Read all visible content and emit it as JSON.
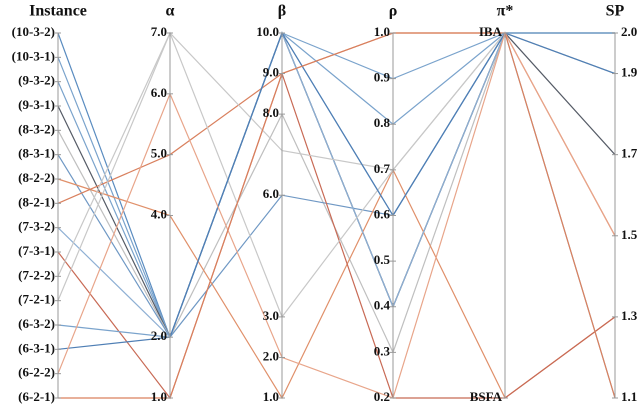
{
  "chart_data": {
    "type": "parallel",
    "dimensions": [
      {
        "label": "Instance",
        "categories": [
          "(6-2-1)",
          "(6-2-2)",
          "(6-3-1)",
          "(6-3-2)",
          "(7-2-1)",
          "(7-2-2)",
          "(7-3-1)",
          "(7-3-2)",
          "(8-2-1)",
          "(8-2-2)",
          "(8-3-1)",
          "(8-3-2)",
          "(9-3-1)",
          "(9-3-2)",
          "(10-3-1)",
          "(10-3-2)"
        ]
      },
      {
        "label": "α",
        "ylim": [
          1,
          7
        ],
        "yticks": [
          {
            "value": 1,
            "label": "1.0"
          },
          {
            "value": 2,
            "label": "2.0"
          },
          {
            "value": 4,
            "label": "4.0"
          },
          {
            "value": 5,
            "label": "5.0"
          },
          {
            "value": 6,
            "label": "6.0"
          },
          {
            "value": 7,
            "label": "7.0"
          }
        ]
      },
      {
        "label": "β",
        "ylim": [
          1,
          10
        ],
        "yticks": [
          {
            "value": 1,
            "label": "1.0"
          },
          {
            "value": 2,
            "label": "2.0"
          },
          {
            "value": 3,
            "label": "3.0"
          },
          {
            "value": 6,
            "label": "6.0"
          },
          {
            "value": 8,
            "label": "8.0"
          },
          {
            "value": 9,
            "label": "9.0"
          },
          {
            "value": 10,
            "label": "10.0"
          }
        ]
      },
      {
        "label": "ρ",
        "ylim": [
          0.2,
          1
        ],
        "yticks": [
          0.2,
          0.3,
          0.4,
          0.5,
          0.6,
          0.7,
          0.8,
          0.9,
          {
            "value": 1,
            "label": "1.0"
          }
        ]
      },
      {
        "label": "π*",
        "categories": [
          "BSFA",
          "IBA"
        ]
      },
      {
        "label": "SP",
        "ylim": [
          1.1,
          2
        ],
        "yticks": [
          1.1,
          1.3,
          1.5,
          1.7,
          1.9,
          {
            "value": 2,
            "label": "2.0"
          }
        ],
        "tick_side": "right"
      }
    ],
    "series": [
      {
        "color": "#5a8cc0",
        "values": [
          "(10-3-2)",
          2,
          10,
          0.4,
          "IBA",
          2
        ]
      },
      {
        "color": "#7aa3cc",
        "values": [
          "(10-3-1)",
          2,
          10,
          0.6,
          "IBA",
          1.9
        ]
      },
      {
        "color": "#7aa3cc",
        "values": [
          "(9-3-2)",
          2,
          10,
          0.8,
          "IBA",
          2
        ]
      },
      {
        "color": "#555b66",
        "values": [
          "(9-3-1)",
          2,
          10,
          0.4,
          "IBA",
          1.7
        ]
      },
      {
        "color": "#bfbfbf",
        "values": [
          "(8-3-2)",
          2,
          8,
          0.3,
          "IBA",
          1.9
        ]
      },
      {
        "color": "#6f98c4",
        "values": [
          "(8-3-1)",
          2,
          6,
          0.6,
          "IBA",
          2
        ]
      },
      {
        "color": "#e0906a",
        "values": [
          "(8-2-2)",
          4,
          1,
          0.7,
          "BSFA",
          1.3
        ]
      },
      {
        "color": "#d9805e",
        "values": [
          "(8-2-1)",
          5,
          9,
          1,
          "IBA",
          1.5
        ]
      },
      {
        "color": "#8fb0d4",
        "values": [
          "(7-3-2)",
          2,
          10,
          0.4,
          "IBA",
          1.1
        ]
      },
      {
        "color": "#c86a55",
        "values": [
          "(7-3-1)",
          1,
          9,
          0.2,
          "BSFA",
          1.3
        ]
      },
      {
        "color": "#c8c8c8",
        "values": [
          "(7-2-2)",
          7,
          3,
          0.7,
          "IBA",
          1.1
        ]
      },
      {
        "color": "#c8c8c8",
        "values": [
          "(7-2-1)",
          7,
          7.1,
          0.7,
          "IBA",
          2
        ]
      },
      {
        "color": "#7aa3cc",
        "values": [
          "(6-3-2)",
          2,
          10,
          0.9,
          "IBA",
          2
        ]
      },
      {
        "color": "#4f7fb5",
        "values": [
          "(6-3-1)",
          2,
          10,
          0.6,
          "IBA",
          1.9
        ]
      },
      {
        "color": "#e8a58a",
        "values": [
          "(6-2-2)",
          6,
          2,
          0.2,
          "IBA",
          1.5
        ]
      },
      {
        "color": "#d9805e",
        "values": [
          "(6-2-1)",
          1,
          9,
          1,
          "IBA",
          1.1
        ]
      }
    ]
  }
}
